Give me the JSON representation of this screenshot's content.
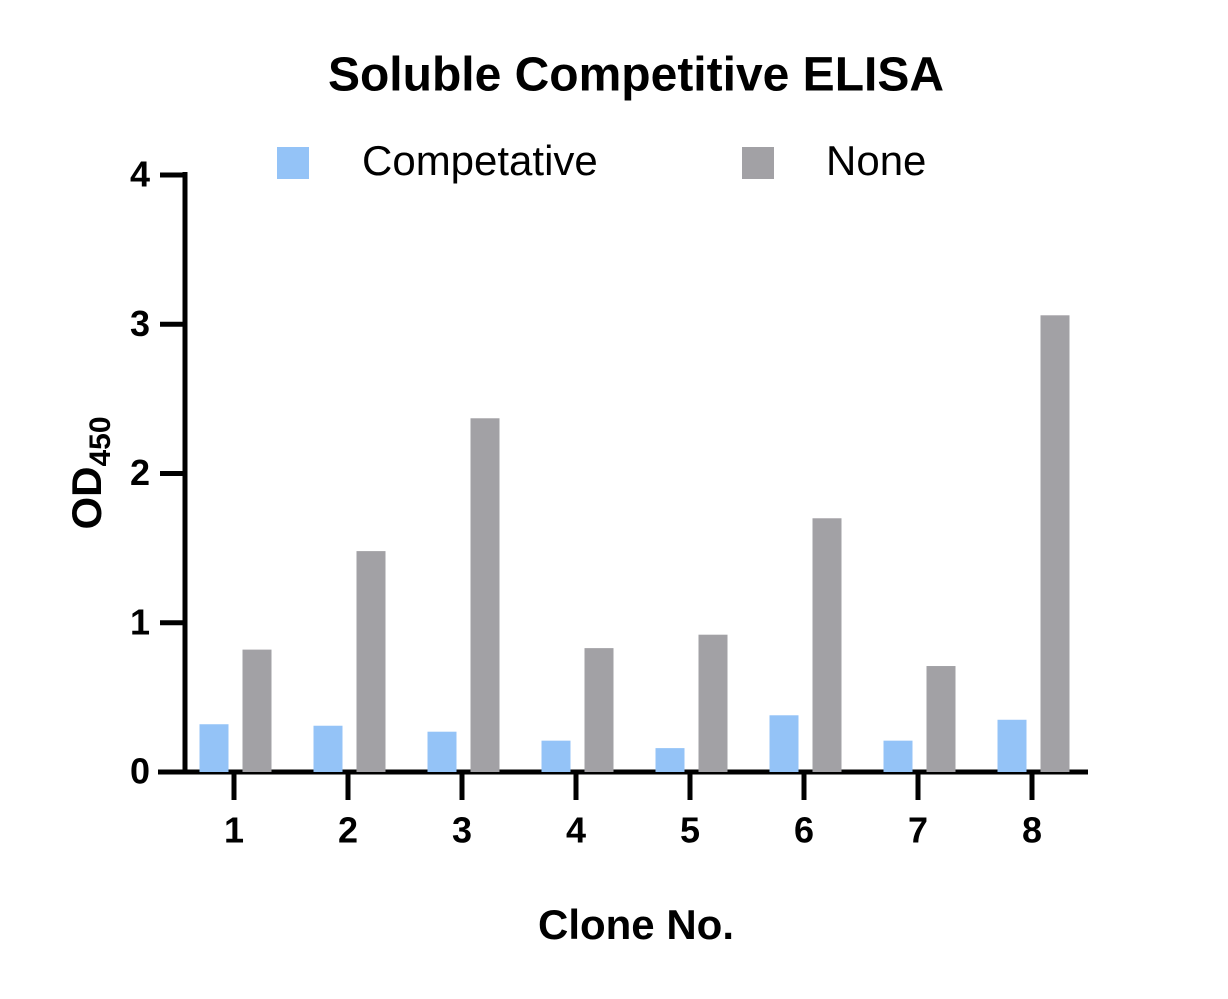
{
  "chart_data": {
    "type": "bar",
    "title": "Soluble Competitive ELISA",
    "xlabel": "Clone No.",
    "ylabel": {
      "text": "OD",
      "subscript": "450"
    },
    "categories": [
      "1",
      "2",
      "3",
      "4",
      "5",
      "6",
      "7",
      "8"
    ],
    "series": [
      {
        "name": "Competative",
        "color": "#94c3f7",
        "values": [
          0.32,
          0.31,
          0.27,
          0.21,
          0.16,
          0.38,
          0.21,
          0.35
        ]
      },
      {
        "name": "None",
        "color": "#a2a1a5",
        "values": [
          0.82,
          1.48,
          2.37,
          0.83,
          0.92,
          1.7,
          0.71,
          3.06
        ]
      }
    ],
    "ylim": [
      0,
      4
    ],
    "yticks": [
      0,
      1,
      2,
      3,
      4
    ],
    "grid": false
  }
}
